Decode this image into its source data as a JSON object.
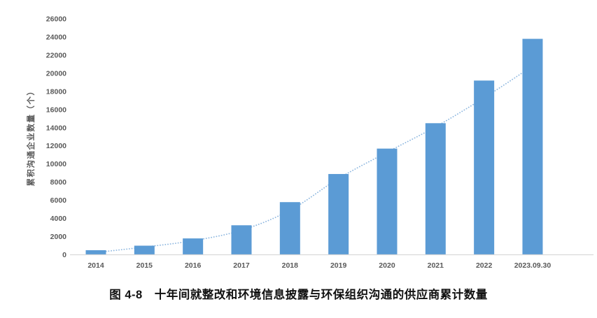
{
  "caption": "图 4-8　十年间就整改和环境信息披露与环保组织沟通的供应商累计数量",
  "chart_data": {
    "type": "bar",
    "title": "",
    "xlabel": "",
    "ylabel": "累积沟通企业数量（个）",
    "categories": [
      "2014",
      "2015",
      "2016",
      "2017",
      "2018",
      "2019",
      "2020",
      "2021",
      "2022",
      "2023.09.30"
    ],
    "values": [
      500,
      1000,
      1800,
      3250,
      5800,
      8900,
      11700,
      14500,
      19200,
      23800
    ],
    "trendline": {
      "style": "dotted",
      "values": [
        250,
        850,
        1550,
        2700,
        4900,
        8400,
        11300,
        14100,
        17300,
        20800
      ]
    },
    "ylim": [
      0,
      26000
    ],
    "ytick_step": 2000,
    "grid": false,
    "legend": "none",
    "colors": {
      "bar": "#5B9BD5",
      "trend": "#8FB8E0",
      "axis_line": "#D9D9D9",
      "tick_text": "#595959",
      "caption_text": "#111111"
    }
  }
}
